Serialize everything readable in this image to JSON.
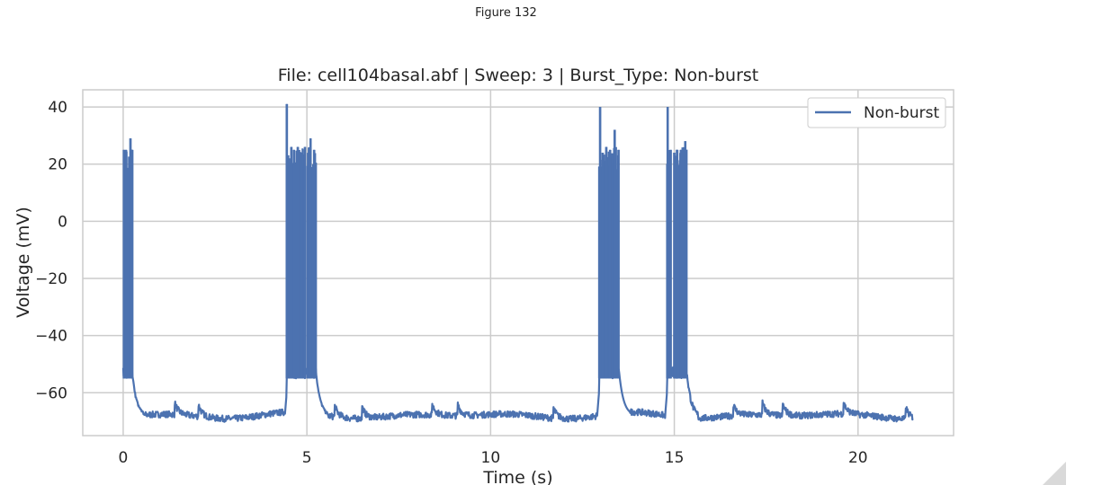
{
  "window": {
    "title": "Figure 132"
  },
  "icons": {
    "resize": "resize-grip-icon"
  },
  "chart_data": {
    "type": "line",
    "title": "File: cell104basal.abf | Sweep: 3 | Burst_Type: Non-burst",
    "xlabel": "Time (s)",
    "ylabel": "Voltage (mV)",
    "xlim": [
      -1.1,
      22.6
    ],
    "ylim": [
      -75,
      46
    ],
    "xticks": [
      0,
      5,
      10,
      15,
      20
    ],
    "xtick_labels": [
      "0",
      "5",
      "10",
      "15",
      "20"
    ],
    "yticks": [
      40,
      20,
      0,
      -20,
      -40,
      -60
    ],
    "ytick_labels": [
      "40",
      "20",
      "0",
      "−20",
      "−40",
      "−60"
    ],
    "grid": true,
    "legend": {
      "placement": "top-right",
      "entries": [
        "Non-burst"
      ]
    },
    "series": [
      {
        "name": "Non-burst",
        "color": "#4c72b0",
        "baseline_mV": -68,
        "trace_end_s": 21.5,
        "bursts": [
          {
            "start": 0.0,
            "end": 0.25,
            "spikes": [
              [
                0.02,
                25
              ],
              [
                0.08,
                25
              ],
              [
                0.2,
                29
              ],
              [
                0.25,
                25
              ]
            ]
          },
          {
            "start": 4.45,
            "end": 5.25,
            "spikes": [
              [
                4.45,
                41
              ],
              [
                4.52,
                22
              ],
              [
                4.58,
                26
              ],
              [
                4.65,
                25
              ],
              [
                4.75,
                26
              ],
              [
                4.85,
                24
              ],
              [
                4.95,
                26
              ],
              [
                5.1,
                29
              ],
              [
                5.2,
                25
              ]
            ]
          },
          {
            "start": 12.95,
            "end": 13.5,
            "spikes": [
              [
                12.98,
                40
              ],
              [
                13.05,
                24
              ],
              [
                13.15,
                26
              ],
              [
                13.25,
                25
              ],
              [
                13.38,
                32
              ],
              [
                13.48,
                25
              ]
            ]
          },
          {
            "start": 14.8,
            "end": 15.35,
            "spikes": [
              [
                14.82,
                40
              ],
              [
                14.9,
                25
              ],
              [
                15.0,
                24
              ],
              [
                15.08,
                25
              ],
              [
                15.18,
                25
              ],
              [
                15.3,
                28
              ]
            ]
          }
        ]
      }
    ]
  }
}
